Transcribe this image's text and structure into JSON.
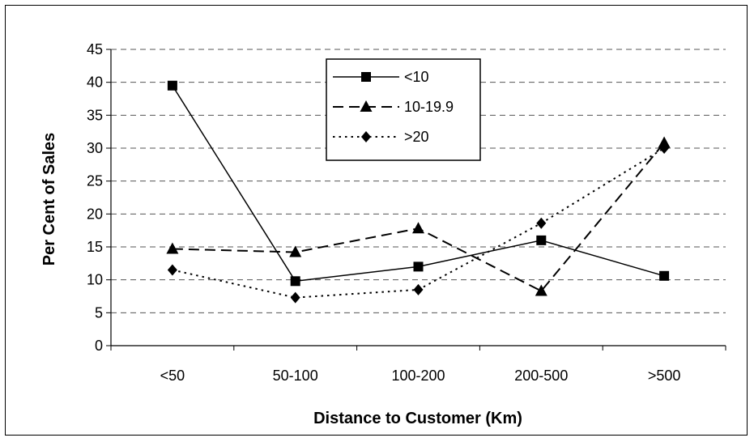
{
  "chart_data": {
    "type": "line",
    "title": "",
    "xlabel": "Distance to Customer (Km)",
    "ylabel": "Per Cent of Sales",
    "categories": [
      "<50",
      "50-100",
      "100-200",
      "200-500",
      ">500"
    ],
    "ylim": [
      0,
      45
    ],
    "yticks": [
      0,
      5,
      10,
      15,
      20,
      25,
      30,
      35,
      40,
      45
    ],
    "grid": "horizontal dashed",
    "legend_position": "top-center",
    "series": [
      {
        "name": "<10",
        "values": [
          39.5,
          9.8,
          12.0,
          16.0,
          10.6
        ],
        "marker": "square",
        "line_style": "solid",
        "color": "#000000"
      },
      {
        "name": "10-19.9",
        "values": [
          14.7,
          14.2,
          17.8,
          8.3,
          30.8
        ],
        "marker": "triangle",
        "line_style": "dashed",
        "color": "#000000"
      },
      {
        "name": ">20",
        "values": [
          11.5,
          7.3,
          8.5,
          18.6,
          30.0
        ],
        "marker": "diamond",
        "line_style": "dotted",
        "color": "#000000"
      }
    ]
  }
}
